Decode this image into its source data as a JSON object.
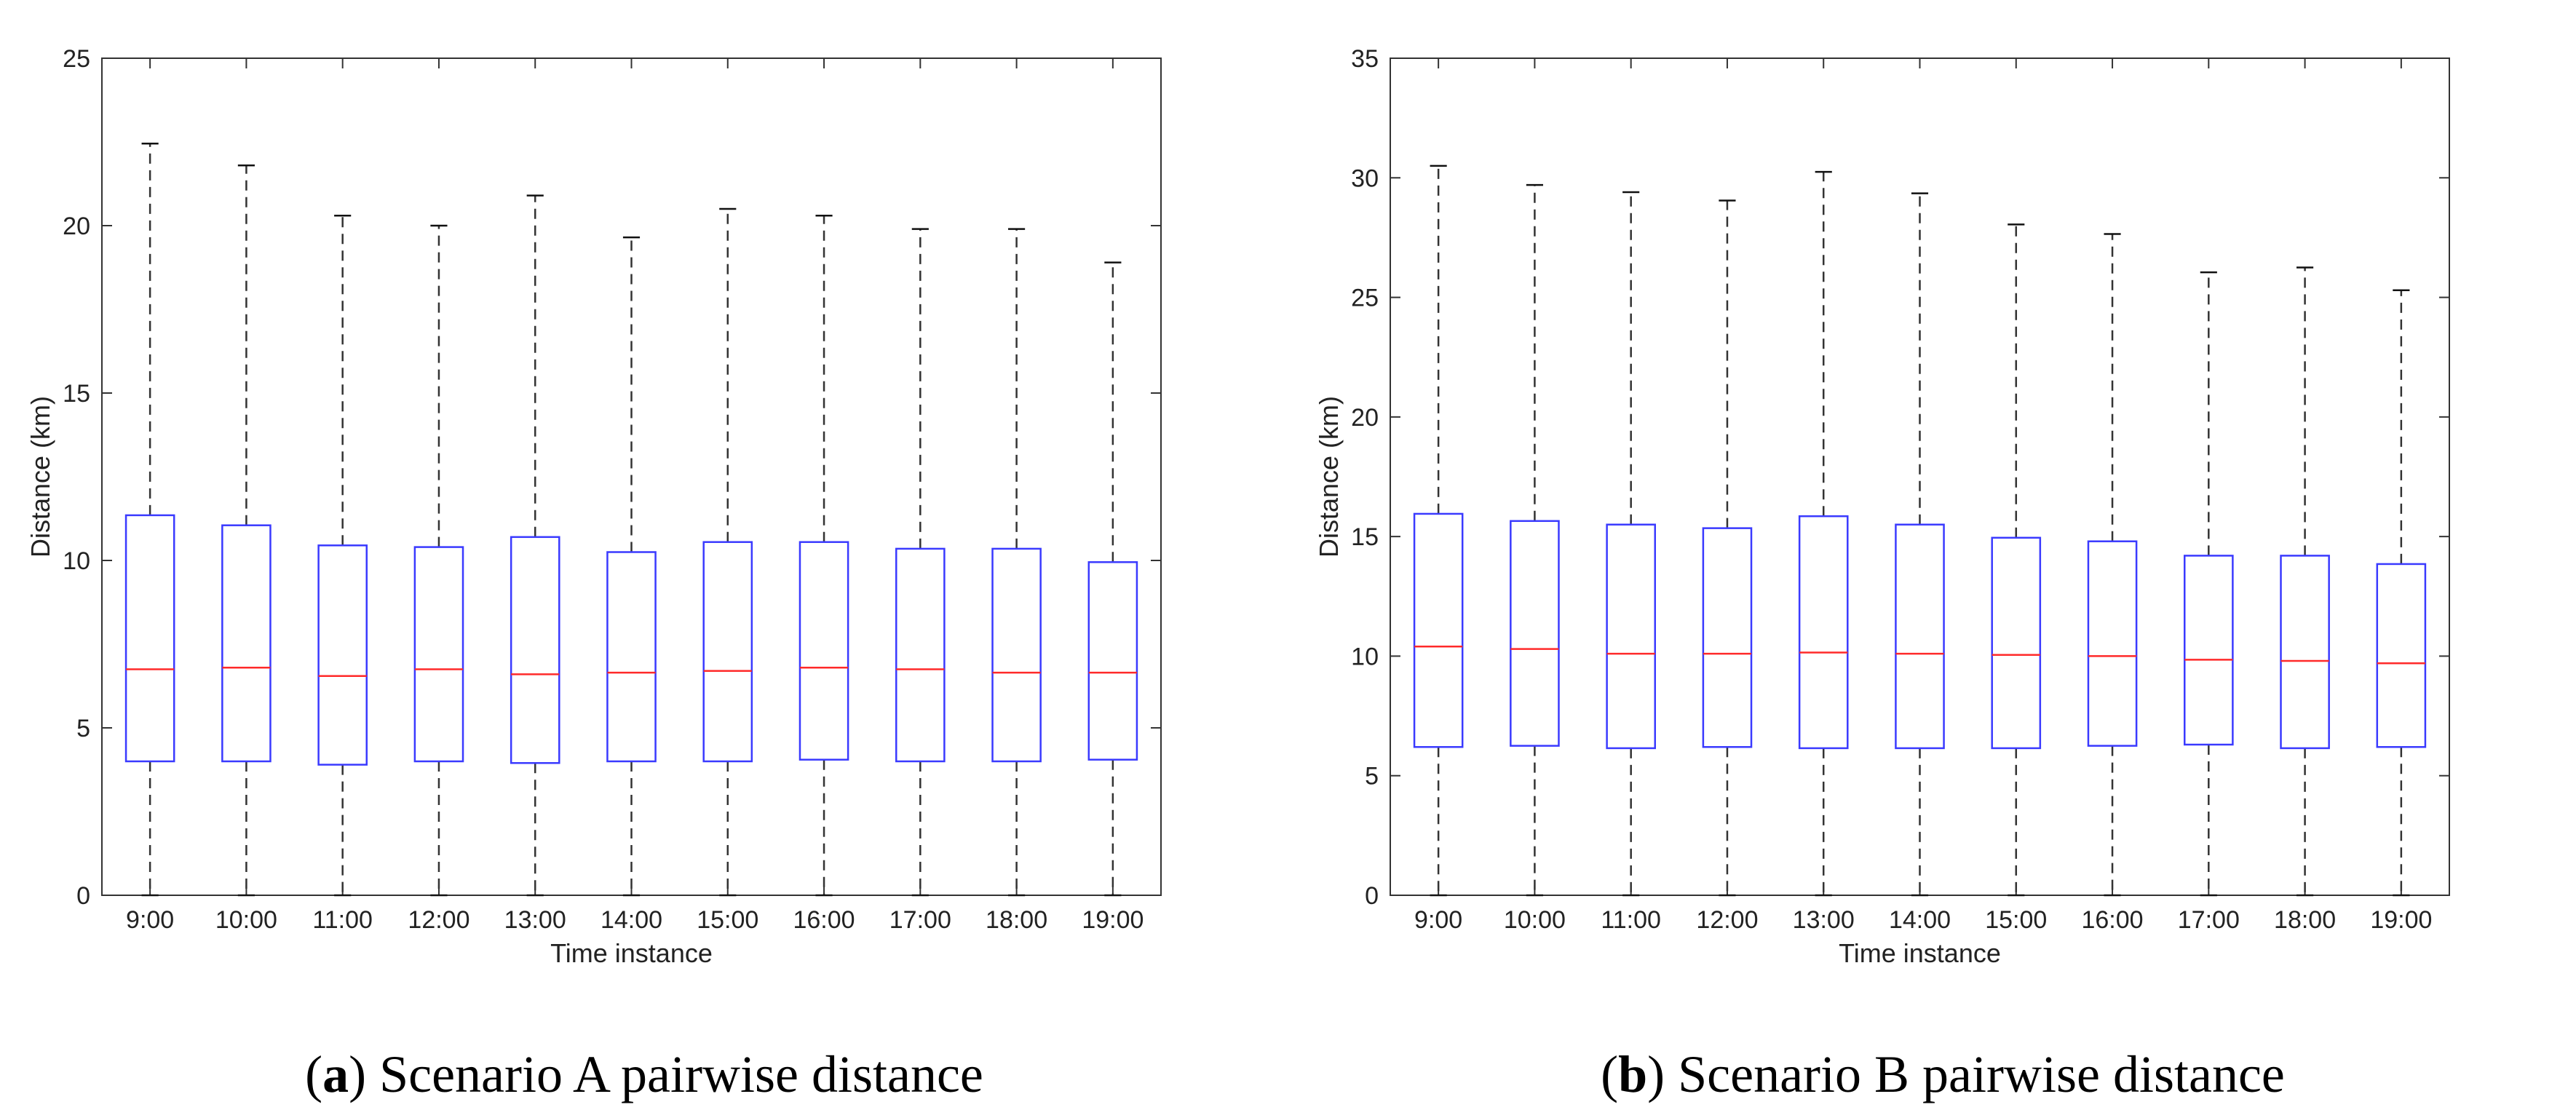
{
  "chart_data": [
    {
      "type": "boxplot",
      "id": "a",
      "caption_label": "a",
      "caption_text": "Scenario A pairwise distance",
      "xlabel": "Time instance",
      "ylabel": "Distance (km)",
      "ylim": [
        0,
        25
      ],
      "yticks": [
        0,
        5,
        10,
        15,
        20,
        25
      ],
      "categories": [
        "9:00",
        "10:00",
        "11:00",
        "12:00",
        "13:00",
        "14:00",
        "15:00",
        "16:00",
        "17:00",
        "18:00",
        "19:00"
      ],
      "whisker_low": [
        0,
        0,
        0,
        0,
        0,
        0,
        0,
        0,
        0,
        0,
        0
      ],
      "q1": [
        4.0,
        4.0,
        3.9,
        4.0,
        3.95,
        4.0,
        4.0,
        4.05,
        4.0,
        4.0,
        4.05
      ],
      "median": [
        6.75,
        6.8,
        6.55,
        6.75,
        6.6,
        6.65,
        6.7,
        6.8,
        6.75,
        6.65,
        6.65
      ],
      "q3": [
        11.35,
        11.05,
        10.45,
        10.4,
        10.7,
        10.25,
        10.55,
        10.55,
        10.35,
        10.35,
        9.95
      ],
      "whisker_high": [
        22.45,
        21.8,
        20.3,
        20.0,
        20.9,
        19.65,
        20.5,
        20.3,
        19.9,
        19.9,
        18.9
      ],
      "box_color": "#3a3aff",
      "median_color": "#ff2a2a",
      "whisker_color": "#333333"
    },
    {
      "type": "boxplot",
      "id": "b",
      "caption_label": "b",
      "caption_text": "Scenario B pairwise distance",
      "xlabel": "Time instance",
      "ylabel": "Distance (km)",
      "ylim": [
        0,
        35
      ],
      "yticks": [
        0,
        5,
        10,
        15,
        20,
        25,
        30,
        35
      ],
      "categories": [
        "9:00",
        "10:00",
        "11:00",
        "12:00",
        "13:00",
        "14:00",
        "15:00",
        "16:00",
        "17:00",
        "18:00",
        "19:00"
      ],
      "whisker_low": [
        0,
        0,
        0,
        0,
        0,
        0,
        0,
        0,
        0,
        0,
        0
      ],
      "q1": [
        6.2,
        6.25,
        6.15,
        6.2,
        6.15,
        6.15,
        6.15,
        6.25,
        6.3,
        6.15,
        6.2
      ],
      "median": [
        10.4,
        10.3,
        10.1,
        10.1,
        10.15,
        10.1,
        10.05,
        10.0,
        9.85,
        9.8,
        9.7
      ],
      "q3": [
        15.95,
        15.65,
        15.5,
        15.35,
        15.85,
        15.5,
        14.95,
        14.8,
        14.2,
        14.2,
        13.85
      ],
      "whisker_high": [
        30.5,
        29.7,
        29.4,
        29.05,
        30.25,
        29.35,
        28.05,
        27.65,
        26.05,
        26.25,
        25.3
      ],
      "box_color": "#3a3aff",
      "median_color": "#ff2a2a",
      "whisker_color": "#333333"
    }
  ]
}
